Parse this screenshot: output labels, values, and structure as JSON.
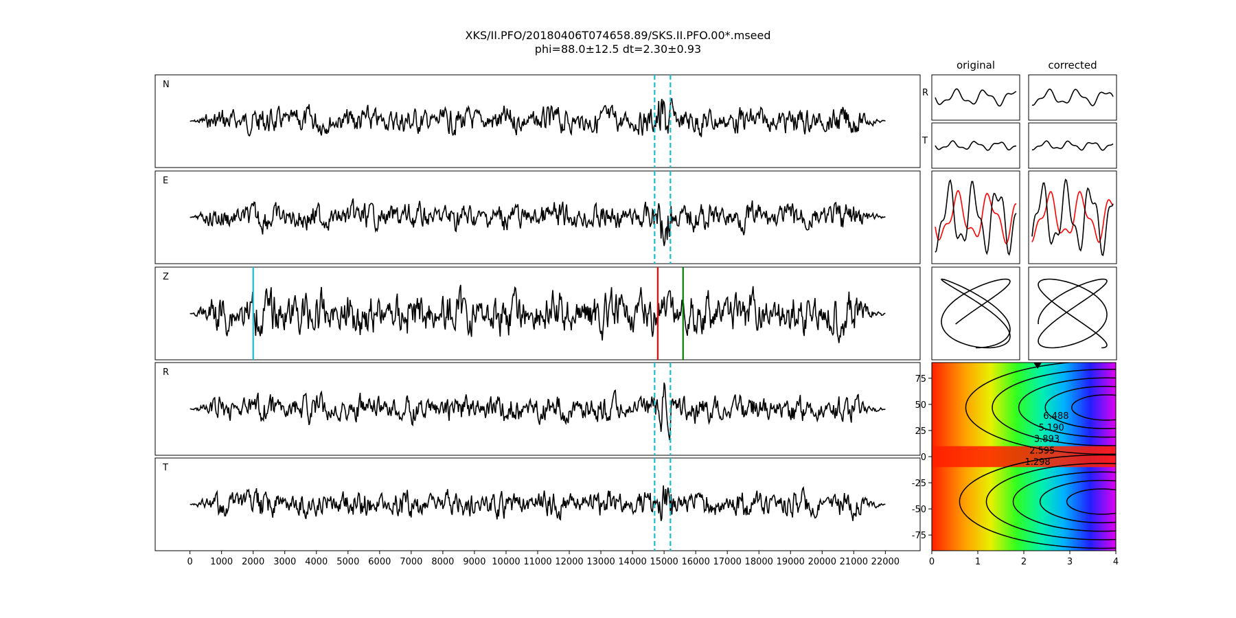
{
  "title_line1": "XKS/II.PFO/20180406T074658.89/SKS.II.PFO.00*.mseed",
  "title_line2": "phi=88.0±12.5 dt=2.30±0.93",
  "chart_data": [
    {
      "type": "line",
      "description_role": "three-component seismograms and rotated R/T traces (shared sample axis)",
      "panels": [
        "N",
        "E",
        "Z",
        "R",
        "T"
      ],
      "x_ticks": [
        0,
        1000,
        2000,
        3000,
        4000,
        5000,
        6000,
        7000,
        8000,
        9000,
        10000,
        11000,
        12000,
        13000,
        14000,
        15000,
        16000,
        17000,
        18000,
        19000,
        20000,
        21000,
        22000
      ],
      "xlim": [
        -1100,
        23100
      ],
      "trace_range": [
        0,
        22000
      ],
      "window_markers": {
        "color": "#17becf",
        "style": "dashed",
        "x": [
          14700,
          15200
        ],
        "panels": [
          "N",
          "E",
          "R",
          "T"
        ]
      },
      "z_markers": [
        {
          "x": 2000,
          "color": "#17becf"
        },
        {
          "x": 14800,
          "color": "#ff0000"
        },
        {
          "x": 15600,
          "color": "#008000"
        }
      ],
      "grid": false
    },
    {
      "type": "line",
      "description_role": "waveform comparison in the analysis window",
      "column_titles": [
        "original",
        "corrected"
      ],
      "row_labels": [
        "R",
        "T"
      ],
      "series_colors": {
        "primary": "#000000",
        "secondary": "#ff0000"
      },
      "grid": false
    },
    {
      "type": "heatmap",
      "description_role": "error surface, colormap gist_rainbow style with labelled contours",
      "xlim": [
        0,
        4
      ],
      "ylim": [
        -90,
        90
      ],
      "x_ticks": [
        0,
        1,
        2,
        3,
        4
      ],
      "y_ticks": [
        -75,
        -50,
        -25,
        0,
        25,
        50,
        75
      ],
      "contour_levels": [
        1.298,
        2.595,
        3.893,
        5.19,
        6.488
      ],
      "contour_labels": [
        "1.298",
        "2.595",
        "3.893",
        "5.190",
        "6.488"
      ],
      "minima": [
        {
          "x": 3.2,
          "y": 47
        },
        {
          "x": 3.1,
          "y": -43
        }
      ],
      "best_estimate_marker": {
        "x": 2.3,
        "y": 88
      }
    }
  ]
}
